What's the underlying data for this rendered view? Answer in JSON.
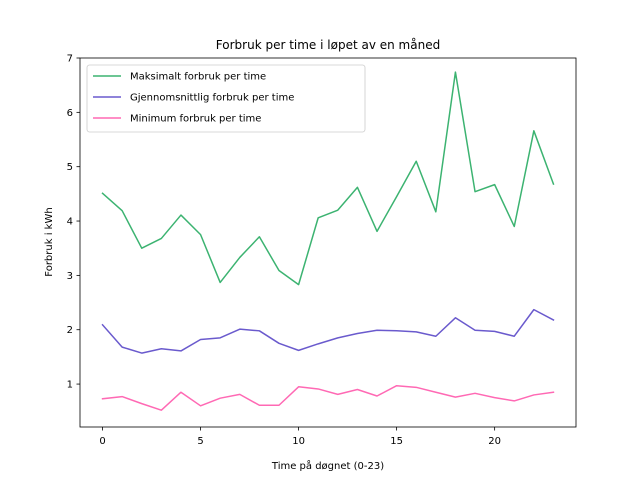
{
  "chart_data": {
    "type": "line",
    "title": "Forbruk per time i løpet av en måned",
    "xlabel": "Time på døgnet (0-23)",
    "ylabel": "Forbruk i kWh",
    "x": [
      0,
      1,
      2,
      3,
      4,
      5,
      6,
      7,
      8,
      9,
      10,
      11,
      12,
      13,
      14,
      15,
      16,
      17,
      18,
      19,
      20,
      21,
      22,
      23
    ],
    "xlim": [
      -1.15,
      24.15
    ],
    "ylim": [
      0.21,
      7.0
    ],
    "xticks": [
      0,
      5,
      10,
      15,
      20
    ],
    "yticks": [
      1,
      2,
      3,
      4,
      5,
      6,
      7
    ],
    "grid": false,
    "legend_position": "top-left",
    "series": [
      {
        "name": "Maksimalt forbruk per time",
        "color": "#3cb371",
        "values": [
          4.51,
          4.19,
          3.5,
          3.68,
          4.11,
          3.75,
          2.87,
          3.33,
          3.71,
          3.09,
          2.83,
          4.06,
          4.2,
          4.62,
          3.81,
          4.45,
          5.1,
          4.17,
          6.74,
          4.54,
          4.67,
          3.9,
          5.66,
          4.68
        ]
      },
      {
        "name": "Gjennomsnittlig forbruk per time",
        "color": "#6a5acd",
        "values": [
          2.09,
          1.68,
          1.57,
          1.65,
          1.61,
          1.82,
          1.85,
          2.01,
          1.98,
          1.75,
          1.62,
          1.74,
          1.85,
          1.93,
          1.99,
          1.98,
          1.96,
          1.88,
          2.22,
          1.99,
          1.97,
          1.88,
          2.37,
          2.18
        ]
      },
      {
        "name": "Minimum forbruk per time",
        "color": "#ff69b4",
        "values": [
          0.73,
          0.77,
          0.64,
          0.52,
          0.85,
          0.6,
          0.74,
          0.81,
          0.61,
          0.61,
          0.95,
          0.91,
          0.81,
          0.9,
          0.78,
          0.97,
          0.94,
          0.85,
          0.76,
          0.83,
          0.75,
          0.69,
          0.8,
          0.85
        ]
      }
    ]
  }
}
